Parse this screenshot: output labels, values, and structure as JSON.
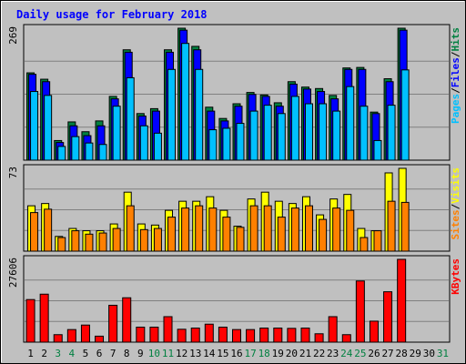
{
  "chart_data": [
    {
      "type": "bar",
      "title": "Daily usage for February 2018",
      "panel": "top",
      "y_max_label": "269",
      "ylim": [
        0,
        269
      ],
      "right_labels": [
        {
          "text": "Pages",
          "color": "#00c0ff"
        },
        {
          "text": "/",
          "color": "#000000"
        },
        {
          "text": "Files",
          "color": "#0000ff"
        },
        {
          "text": "/",
          "color": "#000000"
        },
        {
          "text": "Hits",
          "color": "#008040"
        }
      ],
      "categories": [
        "1",
        "2",
        "3",
        "4",
        "5",
        "6",
        "7",
        "8",
        "9",
        "10",
        "11",
        "12",
        "13",
        "14",
        "15",
        "16",
        "17",
        "18",
        "19",
        "20",
        "21",
        "22",
        "23",
        "24",
        "25",
        "26",
        "27",
        "28"
      ],
      "series": [
        {
          "name": "Hits",
          "color": "#008040",
          "values": [
            178,
            165,
            40,
            78,
            58,
            80,
            130,
            225,
            95,
            105,
            225,
            269,
            232,
            108,
            85,
            115,
            138,
            133,
            117,
            160,
            149,
            146,
            132,
            188,
            189,
            98,
            166,
            269
          ]
        },
        {
          "name": "Files",
          "color": "#0000ff",
          "values": [
            175,
            160,
            36,
            70,
            50,
            70,
            125,
            220,
            90,
            100,
            220,
            265,
            225,
            100,
            80,
            110,
            134,
            130,
            110,
            155,
            145,
            140,
            125,
            185,
            185,
            95,
            160,
            265
          ]
        },
        {
          "name": "Pages",
          "color": "#00c0ff",
          "values": [
            140,
            132,
            28,
            48,
            35,
            32,
            110,
            168,
            70,
            55,
            185,
            238,
            185,
            62,
            65,
            75,
            100,
            112,
            95,
            130,
            115,
            115,
            100,
            150,
            110,
            40,
            112,
            184
          ]
        }
      ]
    },
    {
      "type": "bar",
      "panel": "middle",
      "y_max_label": "73",
      "ylim": [
        0,
        73
      ],
      "right_labels": [
        {
          "text": "Sites",
          "color": "#ff8000"
        },
        {
          "text": "/",
          "color": "#000000"
        },
        {
          "text": "Visits",
          "color": "#ffff00"
        }
      ],
      "categories": [
        "1",
        "2",
        "3",
        "4",
        "5",
        "6",
        "7",
        "8",
        "9",
        "10",
        "11",
        "12",
        "13",
        "14",
        "15",
        "16",
        "17",
        "18",
        "19",
        "20",
        "21",
        "22",
        "23",
        "24",
        "25",
        "26",
        "27",
        "28"
      ],
      "series": [
        {
          "name": "Visits",
          "color": "#ffff00",
          "values": [
            40,
            42,
            13,
            20,
            18,
            18,
            24,
            52,
            24,
            23,
            36,
            44,
            44,
            48,
            36,
            22,
            46,
            52,
            44,
            42,
            48,
            32,
            46,
            50,
            20,
            18,
            69,
            73
          ]
        },
        {
          "name": "Sites",
          "color": "#ff8000",
          "values": [
            34,
            37,
            12,
            18,
            15,
            16,
            20,
            40,
            19,
            20,
            30,
            38,
            40,
            38,
            30,
            21,
            40,
            40,
            30,
            38,
            40,
            28,
            38,
            36,
            12,
            18,
            44,
            43
          ]
        }
      ]
    },
    {
      "type": "bar",
      "panel": "bottom",
      "y_max_label": "27606",
      "ylim": [
        0,
        27606
      ],
      "right_labels": [
        {
          "text": "KBytes",
          "color": "#ff0000"
        }
      ],
      "categories": [
        "1",
        "2",
        "3",
        "4",
        "5",
        "6",
        "7",
        "8",
        "9",
        "10",
        "11",
        "12",
        "13",
        "14",
        "15",
        "16",
        "17",
        "18",
        "19",
        "20",
        "21",
        "22",
        "23",
        "24",
        "25",
        "26",
        "27",
        "28"
      ],
      "series": [
        {
          "name": "KBytes",
          "color": "#ff0000",
          "values": [
            14200,
            16000,
            2500,
            4200,
            5700,
            2000,
            12300,
            14800,
            5000,
            5000,
            8500,
            4300,
            4700,
            6000,
            5000,
            4200,
            4200,
            4700,
            4700,
            4600,
            4700,
            2800,
            8500,
            2500,
            20400,
            7000,
            16800,
            27606
          ]
        }
      ]
    }
  ],
  "x_axis": {
    "days": [
      {
        "label": "1",
        "weekend": false
      },
      {
        "label": "2",
        "weekend": false
      },
      {
        "label": "3",
        "weekend": true
      },
      {
        "label": "4",
        "weekend": true
      },
      {
        "label": "5",
        "weekend": false
      },
      {
        "label": "6",
        "weekend": false
      },
      {
        "label": "7",
        "weekend": false
      },
      {
        "label": "8",
        "weekend": false
      },
      {
        "label": "9",
        "weekend": false
      },
      {
        "label": "10",
        "weekend": true
      },
      {
        "label": "11",
        "weekend": true
      },
      {
        "label": "12",
        "weekend": false
      },
      {
        "label": "13",
        "weekend": false
      },
      {
        "label": "14",
        "weekend": false
      },
      {
        "label": "15",
        "weekend": false
      },
      {
        "label": "16",
        "weekend": false
      },
      {
        "label": "17",
        "weekend": true
      },
      {
        "label": "18",
        "weekend": true
      },
      {
        "label": "19",
        "weekend": false
      },
      {
        "label": "20",
        "weekend": false
      },
      {
        "label": "21",
        "weekend": false
      },
      {
        "label": "22",
        "weekend": false
      },
      {
        "label": "23",
        "weekend": false
      },
      {
        "label": "24",
        "weekend": true
      },
      {
        "label": "25",
        "weekend": true
      },
      {
        "label": "26",
        "weekend": false
      },
      {
        "label": "27",
        "weekend": false
      },
      {
        "label": "28",
        "weekend": false
      },
      {
        "label": "29",
        "weekend": false
      },
      {
        "label": "30",
        "weekend": false
      },
      {
        "label": "31",
        "weekend": true
      }
    ],
    "weekday_color": "#000000",
    "weekend_color": "#008040"
  },
  "colors": {
    "background": "#c0c0c0",
    "title": "#0000ff",
    "gridline": "#808080",
    "panel_border": "#000000"
  }
}
